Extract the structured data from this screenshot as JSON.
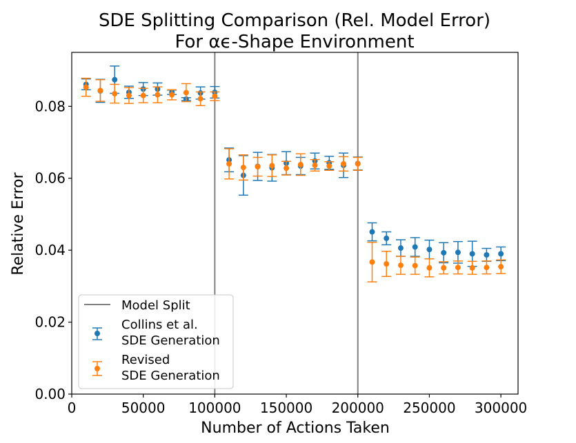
{
  "chart_data": {
    "type": "scatter",
    "title": [
      "SDE Splitting Comparison (Rel. Model Error)",
      "For αϵ-Shape Environment"
    ],
    "xlabel": "Number of Actions Taken",
    "ylabel": "Relative Error",
    "xlim": [
      0,
      312000
    ],
    "ylim": [
      0,
      0.095
    ],
    "xticks": [
      0,
      50000,
      100000,
      150000,
      200000,
      250000,
      300000
    ],
    "xtick_labels": [
      "0",
      "50000",
      "100000",
      "150000",
      "200000",
      "250000",
      "300000"
    ],
    "yticks": [
      0.0,
      0.02,
      0.04,
      0.06,
      0.08
    ],
    "ytick_labels": [
      "0.00",
      "0.02",
      "0.04",
      "0.06",
      "0.08"
    ],
    "grid": false,
    "legend_position": "lower-left",
    "vlines": {
      "name": "Model Split",
      "color": "#808080",
      "x": [
        100000,
        200000
      ]
    },
    "series": [
      {
        "name": "Collins et al. SDE Generation",
        "legend_lines": [
          "Collins et al.",
          "SDE Generation"
        ],
        "color": "#1f77b4",
        "x": [
          10000,
          20000,
          30000,
          40000,
          50000,
          60000,
          70000,
          80000,
          90000,
          100000,
          110000,
          120000,
          130000,
          140000,
          150000,
          160000,
          170000,
          180000,
          190000,
          200000,
          210000,
          220000,
          230000,
          240000,
          250000,
          260000,
          270000,
          280000,
          290000,
          300000
        ],
        "y": [
          0.0861,
          0.0843,
          0.0874,
          0.0839,
          0.0848,
          0.0848,
          0.0839,
          0.082,
          0.0837,
          0.0839,
          0.0651,
          0.0608,
          0.0633,
          0.0629,
          0.0642,
          0.0634,
          0.0648,
          0.0643,
          0.0636,
          0.0641,
          0.0451,
          0.0433,
          0.0406,
          0.0409,
          0.0402,
          0.0393,
          0.0394,
          0.039,
          0.0387,
          0.039
        ],
        "err": [
          0.0015,
          0.0032,
          0.0038,
          0.0017,
          0.0018,
          0.0017,
          0.0006,
          0.0004,
          0.0017,
          0.0016,
          0.0033,
          0.0055,
          0.0039,
          0.0037,
          0.0032,
          0.0024,
          0.0022,
          0.0018,
          0.0034,
          0.0018,
          0.0025,
          0.0018,
          0.0023,
          0.0026,
          0.0026,
          0.0028,
          0.003,
          0.0035,
          0.0018,
          0.0019
        ]
      },
      {
        "name": "Revised SDE Generation",
        "legend_lines": [
          "Revised",
          "SDE Generation"
        ],
        "color": "#ff7f0e",
        "x": [
          10000,
          20000,
          30000,
          40000,
          50000,
          60000,
          70000,
          80000,
          90000,
          100000,
          110000,
          120000,
          130000,
          140000,
          150000,
          160000,
          170000,
          180000,
          190000,
          200000,
          210000,
          220000,
          230000,
          240000,
          250000,
          260000,
          270000,
          280000,
          290000,
          300000
        ],
        "y": [
          0.0853,
          0.0844,
          0.0835,
          0.083,
          0.083,
          0.0832,
          0.0832,
          0.0838,
          0.0821,
          0.0828,
          0.064,
          0.063,
          0.0632,
          0.0635,
          0.0628,
          0.0638,
          0.0636,
          0.0634,
          0.064,
          0.064,
          0.0367,
          0.0362,
          0.0358,
          0.0357,
          0.0351,
          0.0351,
          0.0352,
          0.0351,
          0.0352,
          0.0354
        ],
        "err": [
          0.0025,
          0.003,
          0.0026,
          0.0022,
          0.002,
          0.0022,
          0.0014,
          0.0025,
          0.0019,
          0.0012,
          0.0042,
          0.0035,
          0.0026,
          0.003,
          0.0019,
          0.003,
          0.0016,
          0.0012,
          0.002,
          0.0018,
          0.0055,
          0.0035,
          0.0025,
          0.0024,
          0.0025,
          0.0017,
          0.0018,
          0.0018,
          0.0018,
          0.0019
        ]
      }
    ]
  }
}
